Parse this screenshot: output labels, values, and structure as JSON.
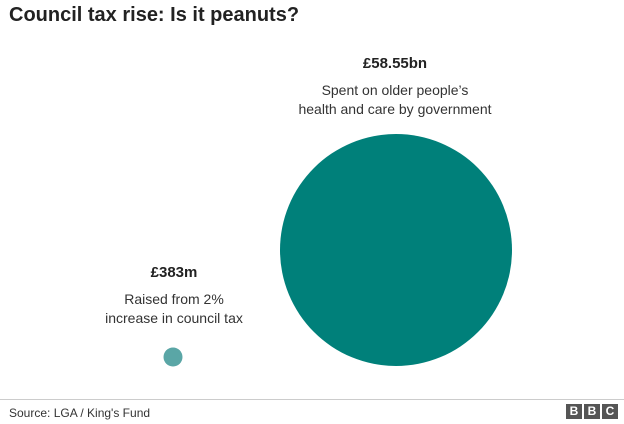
{
  "title": "Council tax rise: Is it peanuts?",
  "chart_data": {
    "type": "bubble",
    "title": "Council tax rise: Is it peanuts?",
    "units": "£ (area proportional to value)",
    "series": [
      {
        "value_label": "£383m",
        "value": 0.383,
        "description_lines": [
          "Raised from 2%",
          "increase in council tax"
        ],
        "color": "#5aa6a6"
      },
      {
        "value_label": "£58.55bn",
        "value": 58.55,
        "description_lines": [
          "Spent on older people’s",
          "health and care by government"
        ],
        "color": "#00807a"
      }
    ]
  },
  "footer": {
    "source": "Source: LGA / King's Fund",
    "logo_letters": [
      "B",
      "B",
      "C"
    ]
  }
}
